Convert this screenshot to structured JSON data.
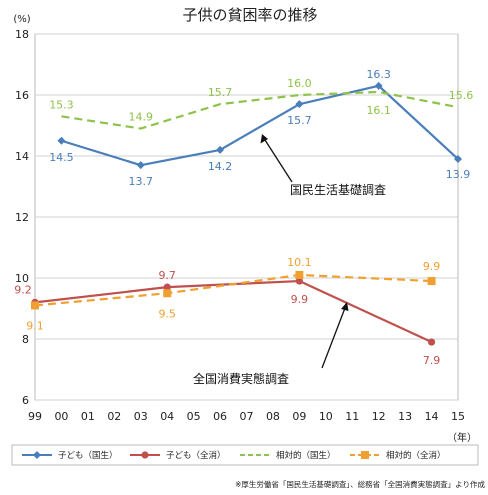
{
  "chart_data": {
    "type": "line",
    "title": "子供の貧困率の推移",
    "y_unit": "(%)",
    "x_unit": "（年）",
    "ylim": [
      6,
      18
    ],
    "yticks": [
      "6",
      "8",
      "10",
      "12",
      "14",
      "16",
      "18"
    ],
    "categories": [
      "99",
      "00",
      "01",
      "02",
      "03",
      "04",
      "05",
      "06",
      "07",
      "08",
      "09",
      "10",
      "11",
      "12",
      "13",
      "14",
      "15"
    ],
    "grid": true,
    "legend_position": "bottom",
    "series": [
      {
        "name": "子ども（国生）",
        "color": "#4a7ebb",
        "style": "solid",
        "marker": "diamond",
        "points": [
          {
            "x": "00",
            "y": 14.5,
            "label": "14.5"
          },
          {
            "x": "03",
            "y": 13.7,
            "label": "13.7"
          },
          {
            "x": "06",
            "y": 14.2,
            "label": "14.2"
          },
          {
            "x": "09",
            "y": 15.7,
            "label": "15.7"
          },
          {
            "x": "12",
            "y": 16.3,
            "label": "16.3"
          },
          {
            "x": "15",
            "y": 13.9,
            "label": "13.9"
          }
        ]
      },
      {
        "name": "子ども（全消）",
        "color": "#c0504d",
        "style": "solid",
        "marker": "circle",
        "points": [
          {
            "x": "99",
            "y": 9.2,
            "label": "9.2"
          },
          {
            "x": "04",
            "y": 9.7,
            "label": "9.7"
          },
          {
            "x": "09",
            "y": 9.9,
            "label": "9.9"
          },
          {
            "x": "14",
            "y": 7.9,
            "label": "7.9"
          }
        ]
      },
      {
        "name": "相対的（国生）",
        "color": "#8fc24a",
        "style": "dashed",
        "marker": "triangle",
        "points": [
          {
            "x": "00",
            "y": 15.3,
            "label": "15.3"
          },
          {
            "x": "03",
            "y": 14.9,
            "label": "14.9"
          },
          {
            "x": "06",
            "y": 15.7,
            "label": "15.7"
          },
          {
            "x": "09",
            "y": 16.0,
            "label": "16.0"
          },
          {
            "x": "12",
            "y": 16.1,
            "label": "16.1"
          },
          {
            "x": "15",
            "y": 15.6,
            "label": "15.6"
          }
        ]
      },
      {
        "name": "相対的（全消）",
        "color": "#f0a030",
        "style": "dashed",
        "marker": "square",
        "points": [
          {
            "x": "99",
            "y": 9.1,
            "label": "9.1"
          },
          {
            "x": "04",
            "y": 9.5,
            "label": "9.5"
          },
          {
            "x": "09",
            "y": 10.1,
            "label": "10.1"
          },
          {
            "x": "14",
            "y": 9.9,
            "label": "9.9"
          }
        ]
      }
    ],
    "annotations": [
      {
        "text": "国民生活基礎調査"
      },
      {
        "text": "全国消費実態調査"
      }
    ],
    "source_note": "※厚生労働省「国民生活基礎調査」、総務省「全国消費実態調査」より作成"
  }
}
